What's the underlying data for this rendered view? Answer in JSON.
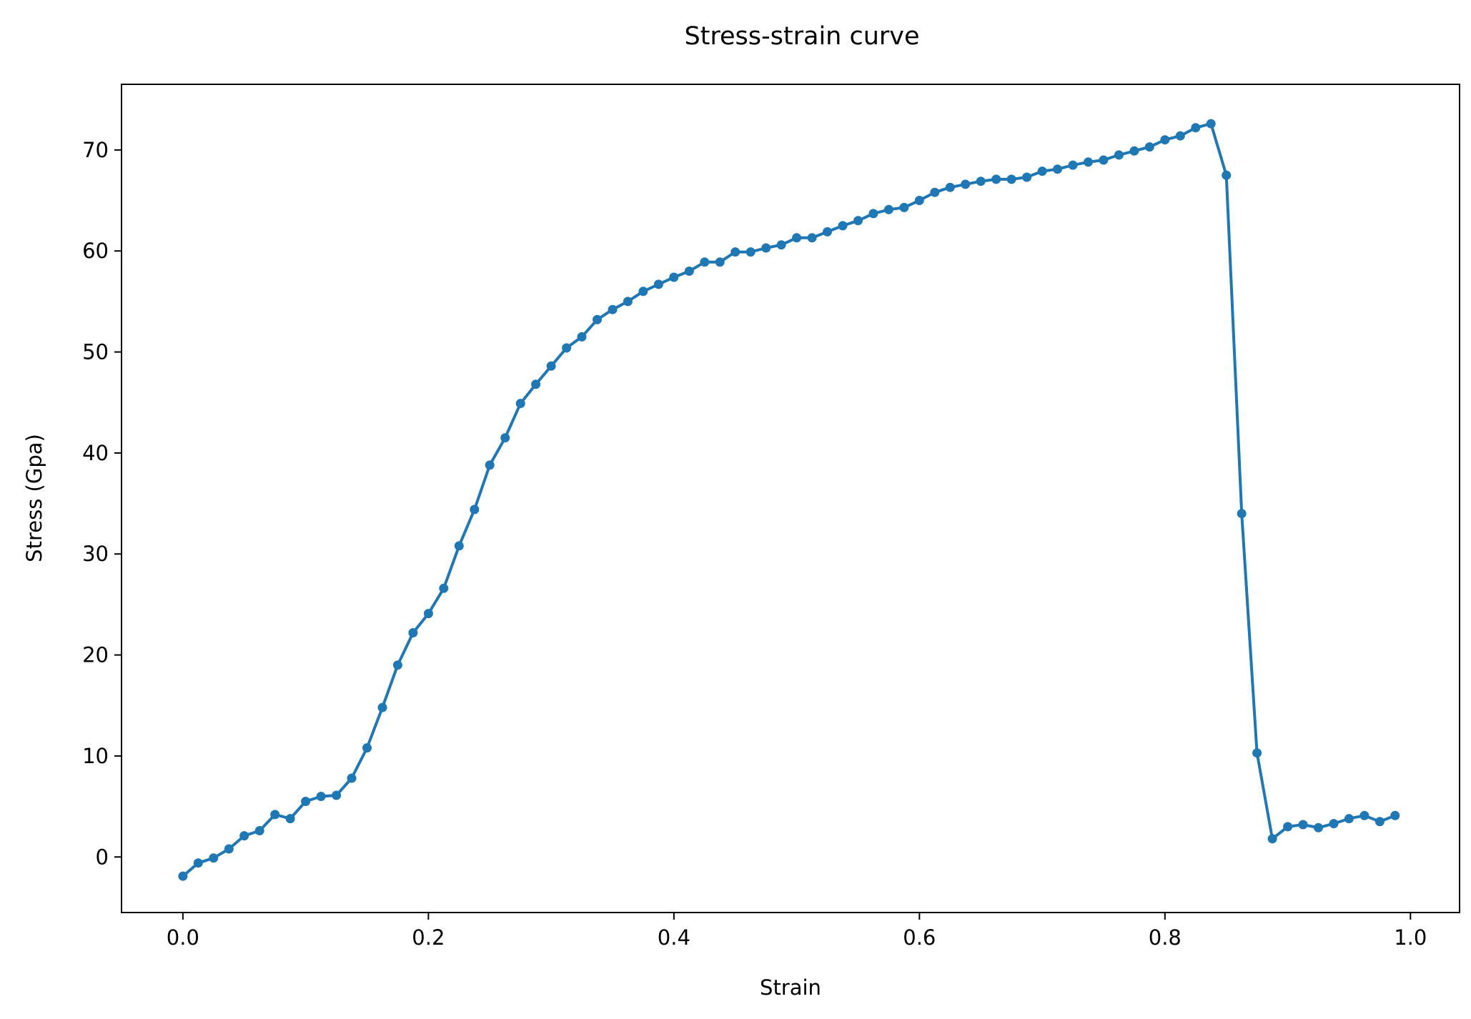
{
  "chart_data": {
    "type": "line",
    "title": "Stress-strain curve",
    "xlabel": "Strain",
    "ylabel": "Stress (Gpa)",
    "xlim": [
      -0.05,
      1.04
    ],
    "ylim": [
      -5.5,
      76.5
    ],
    "xticks": [
      0.0,
      0.2,
      0.4,
      0.6,
      0.8,
      1.0
    ],
    "xtick_labels": [
      "0.0",
      "0.2",
      "0.4",
      "0.6",
      "0.8",
      "1.0"
    ],
    "yticks": [
      0,
      10,
      20,
      30,
      40,
      50,
      60,
      70
    ],
    "ytick_labels": [
      "0",
      "10",
      "20",
      "30",
      "40",
      "50",
      "60",
      "70"
    ],
    "grid": false,
    "color": "#1f77b4",
    "marker": "dot",
    "series": [
      {
        "x": [
          0.0,
          0.0125,
          0.025,
          0.0375,
          0.05,
          0.0625,
          0.075,
          0.0875,
          0.1,
          0.1125,
          0.125,
          0.1375,
          0.15,
          0.1625,
          0.175,
          0.1875,
          0.2,
          0.2125,
          0.225,
          0.2375,
          0.25,
          0.2625,
          0.275,
          0.2875,
          0.3,
          0.3125,
          0.325,
          0.3375,
          0.35,
          0.3625,
          0.375,
          0.3875,
          0.4,
          0.4125,
          0.425,
          0.4375,
          0.45,
          0.4625,
          0.475,
          0.4875,
          0.5,
          0.5125,
          0.525,
          0.5375,
          0.55,
          0.5625,
          0.575,
          0.5875,
          0.6,
          0.6125,
          0.625,
          0.6375,
          0.65,
          0.6625,
          0.675,
          0.6875,
          0.7,
          0.7125,
          0.725,
          0.7375,
          0.75,
          0.7625,
          0.775,
          0.7875,
          0.8,
          0.8125,
          0.825,
          0.8375,
          0.85,
          0.8625,
          0.875,
          0.8875,
          0.9,
          0.9125,
          0.925,
          0.9375,
          0.95,
          0.9625,
          0.975,
          0.9875
        ],
        "y": [
          -1.9,
          -0.6,
          -0.1,
          0.8,
          2.1,
          2.6,
          4.2,
          3.8,
          5.5,
          6.0,
          6.1,
          7.8,
          10.8,
          14.8,
          19.0,
          22.2,
          24.1,
          26.6,
          30.8,
          34.4,
          38.8,
          41.5,
          44.9,
          46.8,
          48.6,
          50.4,
          51.5,
          53.2,
          54.2,
          55.0,
          56.0,
          56.7,
          57.4,
          58.0,
          58.9,
          58.9,
          59.9,
          59.9,
          60.3,
          60.6,
          61.3,
          61.3,
          61.9,
          62.5,
          63.0,
          63.7,
          64.1,
          64.3,
          65.0,
          65.8,
          66.3,
          66.6,
          66.9,
          67.1,
          67.1,
          67.3,
          67.9,
          68.1,
          68.5,
          68.8,
          69.0,
          69.5,
          69.9,
          70.3,
          71.0,
          71.4,
          72.2,
          72.6,
          67.5,
          34.0,
          10.3,
          1.8,
          3.0,
          3.2,
          2.9,
          3.3,
          3.8,
          4.1,
          3.5,
          4.1
        ]
      }
    ]
  }
}
